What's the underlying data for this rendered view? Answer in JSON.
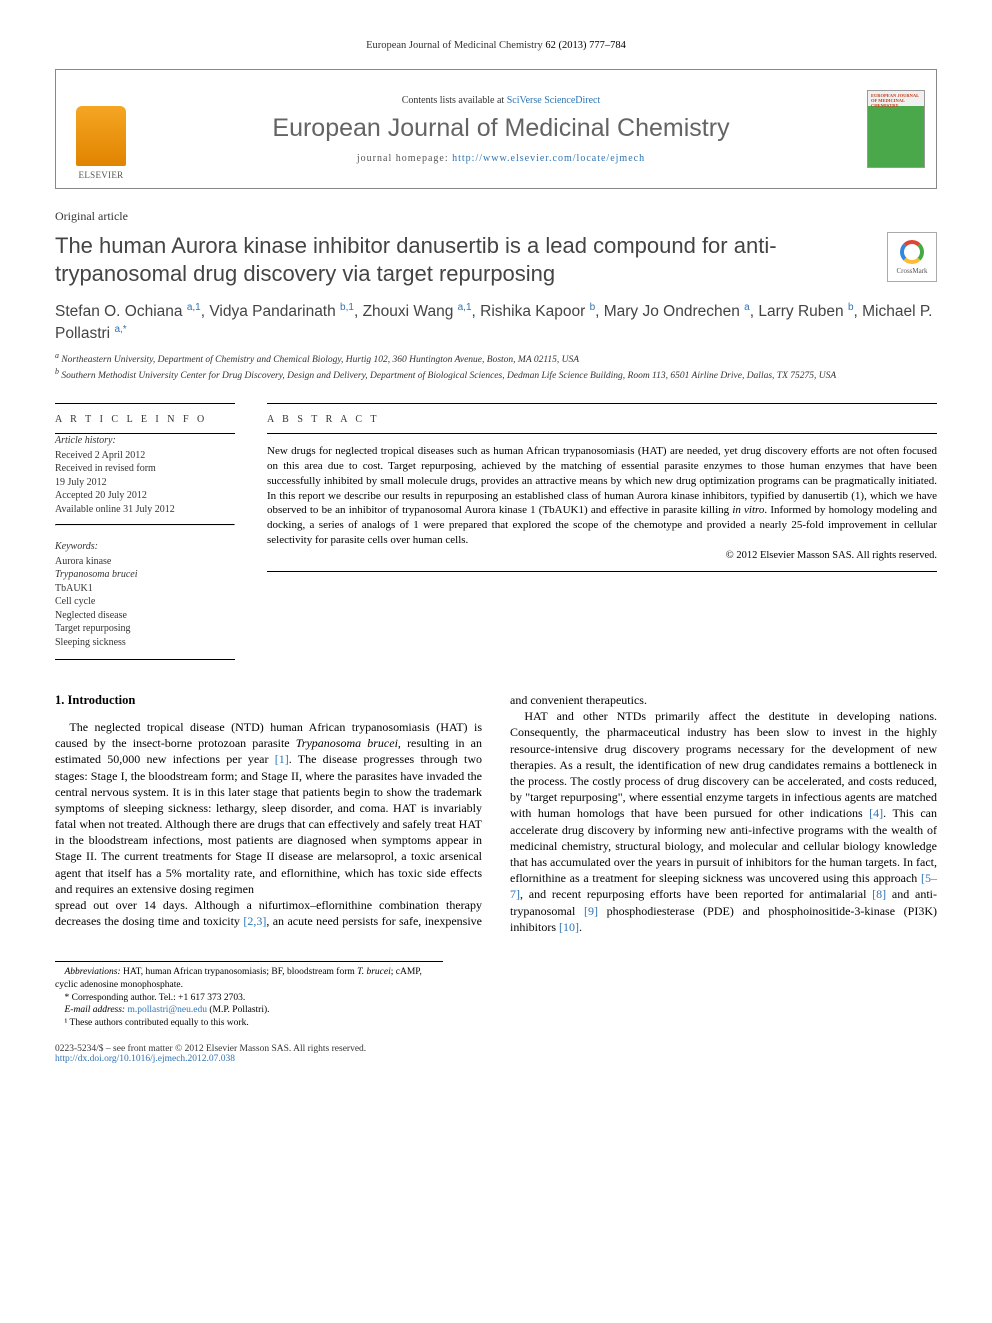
{
  "running_head": {
    "journal": "European Journal of Medicinal Chemistry",
    "citation": "62 (2013) 777–784"
  },
  "header": {
    "contents_prefix": "Contents lists available at ",
    "contents_link": "SciVerse ScienceDirect",
    "journal_name": "European Journal of Medicinal Chemistry",
    "homepage_prefix": "journal homepage: ",
    "homepage_url": "http://www.elsevier.com/locate/ejmech",
    "publisher": "ELSEVIER"
  },
  "article_type": "Original article",
  "title": "The human Aurora kinase inhibitor danusertib is a lead compound for anti-trypanosomal drug discovery via target repurposing",
  "crossmark_label": "CrossMark",
  "authors_html": "Stefan O. Ochiana <sup>a,1</sup>, Vidya Pandarinath <sup>b,1</sup>, Zhouxi Wang <sup>a,1</sup>, Rishika Kapoor <sup>b</sup>, Mary Jo Ondrechen <sup>a</sup>, Larry Ruben <sup>b</sup>, Michael P. Pollastri <sup>a,*</sup>",
  "affiliations": {
    "a": "Northeastern University, Department of Chemistry and Chemical Biology, Hurtig 102, 360 Huntington Avenue, Boston, MA 02115, USA",
    "b": "Southern Methodist University Center for Drug Discovery, Design and Delivery, Department of Biological Sciences, Dedman Life Science Building, Room 113, 6501 Airline Drive, Dallas, TX 75275, USA"
  },
  "info": {
    "heading": "A R T I C L E   I N F O",
    "history_head": "Article history:",
    "history": [
      "Received 2 April 2012",
      "Received in revised form",
      "19 July 2012",
      "Accepted 20 July 2012",
      "Available online 31 July 2012"
    ],
    "keywords_head": "Keywords:",
    "keywords": [
      "Aurora kinase",
      "Trypanosoma brucei",
      "TbAUK1",
      "Cell cycle",
      "Neglected disease",
      "Target repurposing",
      "Sleeping sickness"
    ]
  },
  "abstract": {
    "heading": "A B S T R A C T",
    "text": "New drugs for neglected tropical diseases such as human African trypanosomiasis (HAT) are needed, yet drug discovery efforts are not often focused on this area due to cost. Target repurposing, achieved by the matching of essential parasite enzymes to those human enzymes that have been successfully inhibited by small molecule drugs, provides an attractive means by which new drug optimization programs can be pragmatically initiated. In this report we describe our results in repurposing an established class of human Aurora kinase inhibitors, typified by danusertib (1), which we have observed to be an inhibitor of trypanosomal Aurora kinase 1 (TbAUK1) and effective in parasite killing in vitro. Informed by homology modeling and docking, a series of analogs of 1 were prepared that explored the scope of the chemotype and provided a nearly 25-fold improvement in cellular selectivity for parasite cells over human cells.",
    "copyright": "© 2012 Elsevier Masson SAS. All rights reserved."
  },
  "body": {
    "intro_head": "1. Introduction",
    "p1": "The neglected tropical disease (NTD) human African trypanosomiasis (HAT) is caused by the insect-borne protozoan parasite Trypanosoma brucei, resulting in an estimated 50,000 new infections per year [1]. The disease progresses through two stages: Stage I, the bloodstream form; and Stage II, where the parasites have invaded the central nervous system. It is in this later stage that patients begin to show the trademark symptoms of sleeping sickness: lethargy, sleep disorder, and coma. HAT is invariably fatal when not treated. Although there are drugs that can effectively and safely treat HAT in the bloodstream infections, most patients are diagnosed when symptoms appear in Stage II. The current treatments for Stage II disease are melarsoprol, a toxic arsenical agent that itself has a 5% mortality rate, and eflornithine, which has toxic side effects and requires an extensive dosing regimen",
    "p2": "spread out over 14 days. Although a nifurtimox–eflornithine combination therapy decreases the dosing time and toxicity [2,3], an acute need persists for safe, inexpensive and convenient therapeutics.",
    "p3": "HAT and other NTDs primarily affect the destitute in developing nations. Consequently, the pharmaceutical industry has been slow to invest in the highly resource-intensive drug discovery programs necessary for the development of new therapies. As a result, the identification of new drug candidates remains a bottleneck in the process. The costly process of drug discovery can be accelerated, and costs reduced, by \"target repurposing\", where essential enzyme targets in infectious agents are matched with human homologs that have been pursued for other indications [4]. This can accelerate drug discovery by informing new anti-infective programs with the wealth of medicinal chemistry, structural biology, and molecular and cellular biology knowledge that has accumulated over the years in pursuit of inhibitors for the human targets. In fact, eflornithine as a treatment for sleeping sickness was uncovered using this approach [5–7], and recent repurposing efforts have been reported for antimalarial [8] and anti-trypanosomal [9] phosphodiesterase (PDE) and phosphoinositide-3-kinase (PI3K) inhibitors [10]."
  },
  "footnotes": {
    "abbrev_label": "Abbreviations:",
    "abbrev": "HAT, human African trypanosomiasis; BF, bloodstream form T. brucei; cAMP, cyclic adenosine monophosphate.",
    "corr": "* Corresponding author. Tel.: +1 617 373 2703.",
    "email_label": "E-mail address:",
    "email": "m.pollastri@neu.edu",
    "email_who": "(M.P. Pollastri).",
    "equal": "¹ These authors contributed equally to this work."
  },
  "footer": {
    "left1": "0223-5234/$ – see front matter © 2012 Elsevier Masson SAS. All rights reserved.",
    "doi": "http://dx.doi.org/10.1016/j.ejmech.2012.07.038"
  },
  "style": {
    "link_color": "#2e74b5",
    "journal_name_color": "#646464",
    "title_color": "#444444"
  }
}
